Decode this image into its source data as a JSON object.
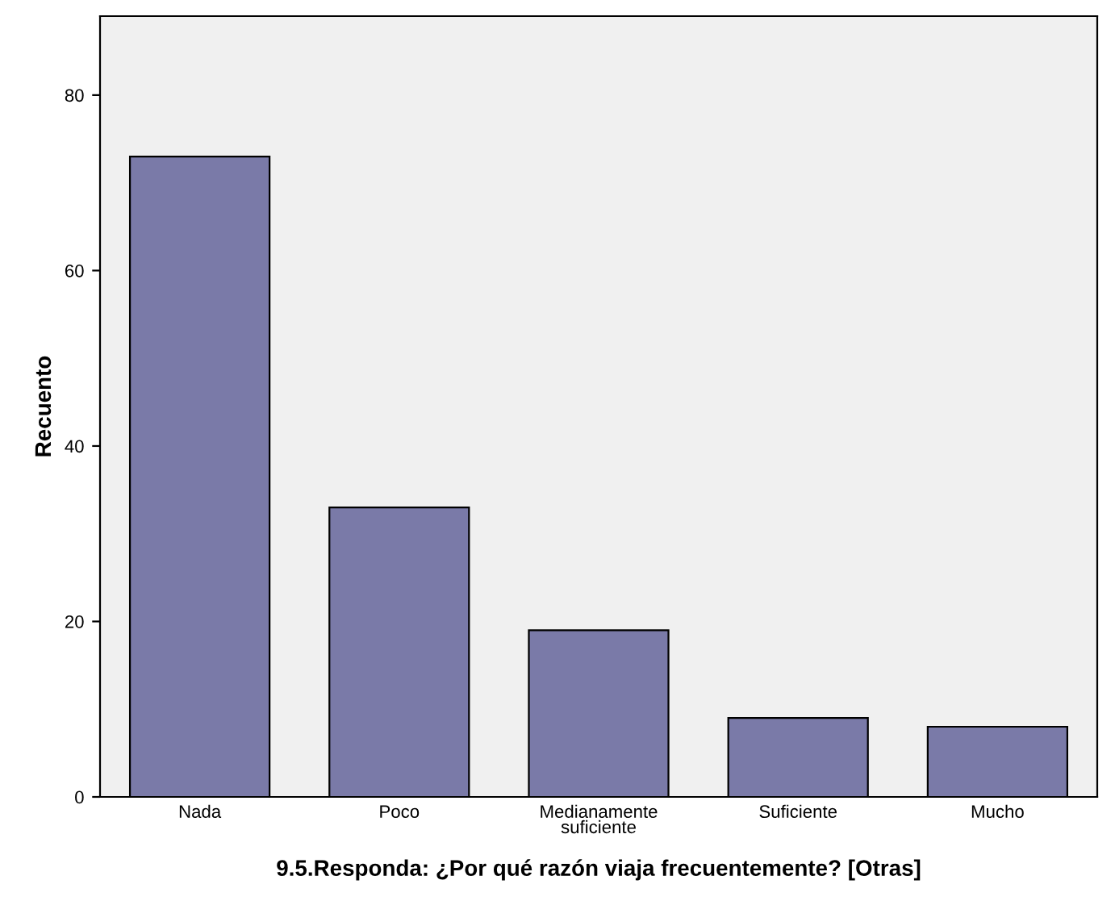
{
  "chart_data": {
    "type": "bar",
    "xlabel": "9.5.Responda: ¿Por qué razón viaja frecuentemente? [Otras]",
    "ylabel": "Recuento",
    "categories": [
      "Nada",
      "Poco",
      "Medianamente\nsuficiente",
      "Suficiente",
      "Mucho"
    ],
    "values": [
      73,
      33,
      19,
      9,
      8
    ],
    "color": "#7a7aa8",
    "ylim": [
      0,
      89
    ],
    "yticks": [
      0,
      20,
      40,
      60,
      80
    ],
    "grid": false,
    "legend": false
  }
}
